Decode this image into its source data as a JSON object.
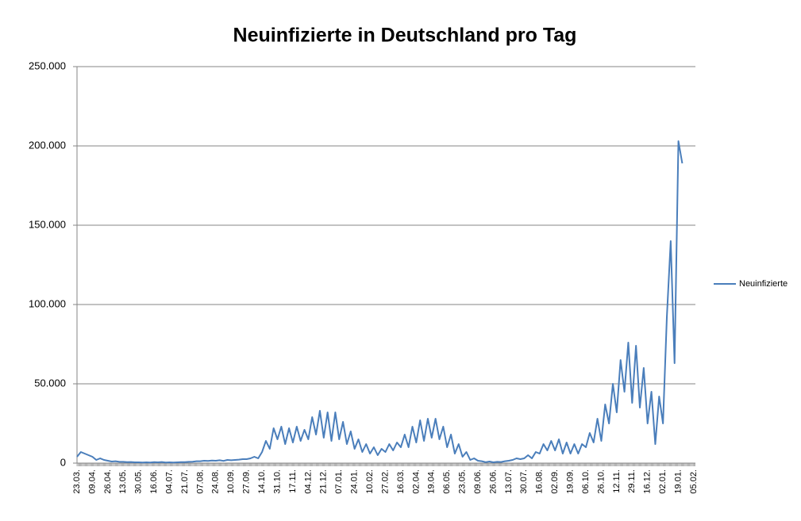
{
  "chart_data": {
    "type": "line",
    "title": "Neuinfizierte in Deutschland pro Tag",
    "categories": [
      "23.03.",
      null,
      null,
      null,
      "09.04.",
      null,
      null,
      null,
      "26.04.",
      null,
      null,
      null,
      "13.05.",
      null,
      null,
      null,
      "30.05.",
      null,
      null,
      null,
      "16.06.",
      null,
      null,
      null,
      "04.07.",
      null,
      null,
      null,
      "21.07.",
      null,
      null,
      null,
      "07.08.",
      null,
      null,
      null,
      "24.08.",
      null,
      null,
      null,
      "10.09.",
      null,
      null,
      null,
      "27.09.",
      null,
      null,
      null,
      "14.10.",
      null,
      null,
      null,
      "31.10.",
      null,
      null,
      null,
      "17.11.",
      null,
      null,
      null,
      "04.12.",
      null,
      null,
      null,
      "21.12.",
      null,
      null,
      null,
      "07.01.",
      null,
      null,
      null,
      "24.01.",
      null,
      null,
      null,
      "10.02.",
      null,
      null,
      null,
      "27.02.",
      null,
      null,
      null,
      "16.03.",
      null,
      null,
      null,
      "02.04.",
      null,
      null,
      null,
      "19.04.",
      null,
      null,
      null,
      "06.05.",
      null,
      null,
      null,
      "23.05.",
      null,
      null,
      null,
      "09.06.",
      null,
      null,
      null,
      "26.06.",
      null,
      null,
      null,
      "13.07.",
      null,
      null,
      null,
      "30.07.",
      null,
      null,
      null,
      "16.08.",
      null,
      null,
      null,
      "02.09.",
      null,
      null,
      null,
      "19.09.",
      null,
      null,
      null,
      "06.10.",
      null,
      null,
      null,
      "26.10.",
      null,
      null,
      null,
      "12.11.",
      null,
      null,
      null,
      "29.11.",
      null,
      null,
      null,
      "16.12.",
      null,
      null,
      null,
      "02.01.",
      null,
      null,
      null,
      "19.01.",
      null,
      null,
      null,
      "05.02."
    ],
    "series": [
      {
        "name": "Neuinfizierte",
        "color": "#4a7ebb",
        "values": [
          4000,
          7000,
          6000,
          5000,
          4000,
          2000,
          3000,
          2000,
          1500,
          1000,
          1200,
          800,
          800,
          600,
          700,
          500,
          500,
          400,
          500,
          400,
          600,
          500,
          700,
          400,
          500,
          400,
          500,
          600,
          600,
          800,
          900,
          1200,
          1200,
          1500,
          1400,
          1600,
          1500,
          1800,
          1400,
          2000,
          1800,
          2000,
          2200,
          2500,
          2500,
          3000,
          4000,
          3000,
          7000,
          14000,
          9000,
          22000,
          15000,
          23000,
          12000,
          22000,
          13000,
          23000,
          14000,
          21000,
          15000,
          29000,
          18000,
          33000,
          16000,
          32000,
          14000,
          32000,
          15000,
          26000,
          12000,
          20000,
          9000,
          15000,
          7000,
          12000,
          6000,
          10000,
          5000,
          9000,
          7000,
          12000,
          8000,
          13000,
          10000,
          18000,
          10000,
          23000,
          13000,
          27000,
          14000,
          28000,
          16000,
          28000,
          15000,
          23000,
          10000,
          18000,
          6000,
          12000,
          4000,
          7000,
          2000,
          3000,
          1500,
          1200,
          600,
          1000,
          500,
          800,
          700,
          1200,
          1500,
          2000,
          3000,
          2500,
          3000,
          5000,
          3000,
          7000,
          6000,
          12000,
          8000,
          14000,
          8000,
          15000,
          6000,
          13000,
          6000,
          12000,
          6000,
          12000,
          10000,
          19000,
          13000,
          28000,
          14000,
          37000,
          25000,
          50000,
          32000,
          65000,
          45000,
          76000,
          38000,
          74000,
          35000,
          60000,
          25000,
          45000,
          12000,
          42000,
          25000,
          92000,
          140000,
          63000,
          203000,
          189000,
          null,
          null,
          null
        ]
      }
    ],
    "ylim": [
      0,
      250000
    ],
    "yticks": [
      0,
      {
        "value": 50000,
        "label": "50.000"
      },
      {
        "value": 100000,
        "label": "100.000"
      },
      {
        "value": 150000,
        "label": "150.000"
      },
      {
        "value": 200000,
        "label": "200.000"
      },
      {
        "value": 250000,
        "label": "250.000"
      }
    ],
    "grid": true,
    "legend": "right"
  }
}
